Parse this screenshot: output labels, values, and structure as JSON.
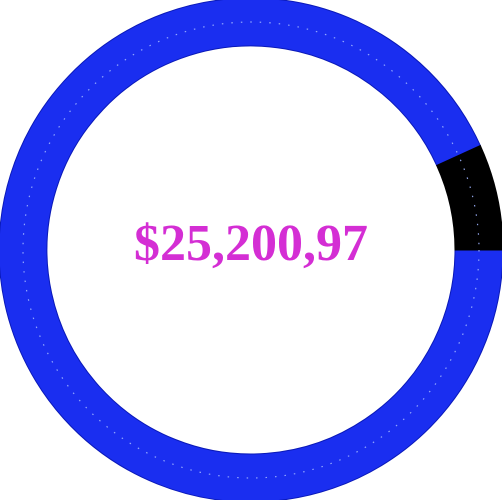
{
  "chart_data": {
    "type": "pie",
    "style": "donut",
    "center_label": "$25,200,97",
    "center_label_color": "#d42ed4",
    "slices": [
      {
        "value": 93.2,
        "color": "#1a2ef0",
        "edge_color": "#0a19b8"
      },
      {
        "value": 6.8,
        "color": "#000000",
        "edge_color": "#000000"
      }
    ],
    "start_angle_deg": 90,
    "direction": "clockwise",
    "legend": "none"
  }
}
